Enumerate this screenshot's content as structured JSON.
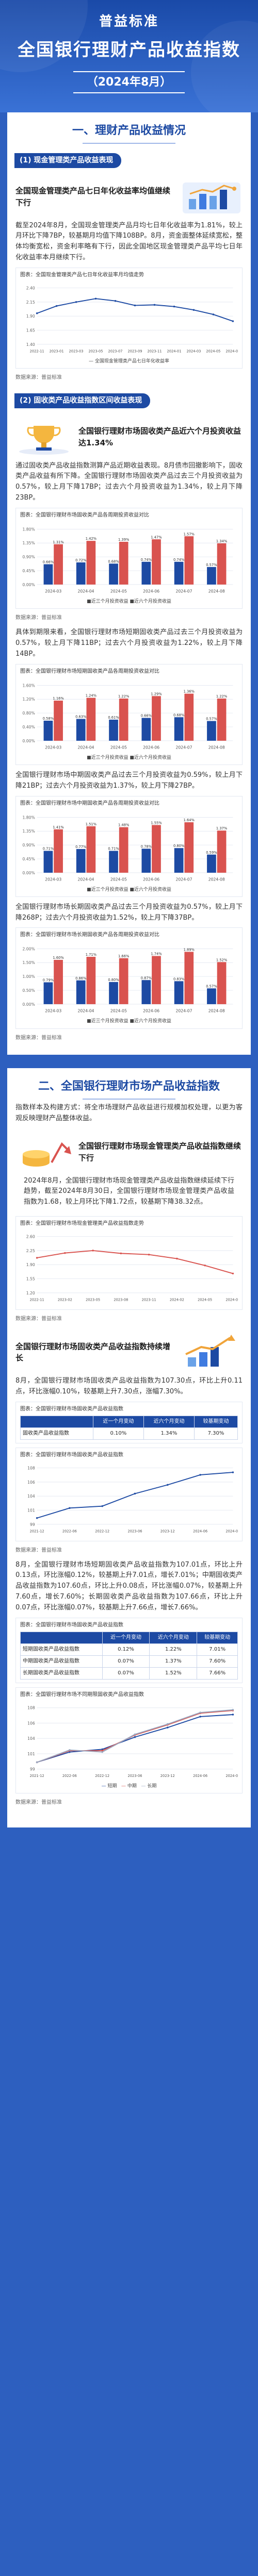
{
  "header": {
    "line1": "普益标准",
    "line2": "全国银行理财产品收益指数",
    "line3": "（2024年8月）"
  },
  "section1": {
    "title": "一、理财产品收益情况",
    "sub1": {
      "label": "(1) 现金管理类产品收益表现",
      "callout": "全国现金管理类产品七日年化收益率均值继续下行",
      "paragraph": "截至2024年8月，全国现金管理类产品月均七日年化收益率为1.81%，较上月环比下降7BP，较基期月均值下降108BP。8月，资金面整体延续宽松，整体均衡宽松，资金利率略有下行，因此全国地区现金管理类产品平均七日年化收益率本月继续下行。",
      "fig_title": "图表：全国现金管理类产品七日年化收益率月均值走势",
      "source": "数据来源：普益标准",
      "chart_data": {
        "type": "line",
        "x": [
          "2022-11",
          "2023-01",
          "2023-03",
          "2023-05",
          "2023-07",
          "2023-09",
          "2023-11",
          "2024-01",
          "2024-03",
          "2024-05",
          "2024-08"
        ],
        "series": [
          {
            "name": "全国现金管理类产品七日年化收益率",
            "values": [
              1.95,
              2.08,
              2.15,
              2.21,
              2.17,
              2.09,
              2.1,
              2.07,
              2.01,
              1.93,
              1.81
            ]
          }
        ],
        "ylim": [
          1.4,
          2.4
        ]
      }
    },
    "sub2": {
      "label": "(2) 固收类产品收益指数区间收益表现",
      "callout": "全国银行理财市场固收类产品近六个月投资收益达1.34%",
      "p1": "通过固收类产品收益指数测算产品近期收益表现。8月债市回撤影响下，固收类产品收益有所下降。全国银行理财市场固收类产品过去三个月投资收益为0.57%，较上月下降17BP；过去六个月投资收益为1.34%，较上月下降23BP。",
      "fig1_title": "图表：全国银行理财市场固收类产品各周期投资收益对比",
      "fig1_legend": "■近三个月投资收益   ■近六个月投资收益",
      "fig1_source": "数据来源：普益标准",
      "chart1": {
        "type": "bar",
        "categories": [
          "2024-03",
          "2024-04",
          "2024-05",
          "2024-06",
          "2024-07",
          "2024-08"
        ],
        "series": [
          {
            "name": "近三个月投资收益",
            "values": [
              0.66,
              0.72,
              0.68,
              0.74,
              0.74,
              0.57
            ]
          },
          {
            "name": "近六个月投资收益",
            "values": [
              1.31,
              1.42,
              1.39,
              1.47,
              1.57,
              1.34
            ]
          }
        ],
        "ylim": [
          0,
          1.8
        ]
      },
      "p2": "具体到期限来看，全国银行理财市场短期固收类产品过去三个月投资收益为0.57%，较上月下降11BP；过去六个月投资收益为1.22%，较上月下降14BP。",
      "fig2_title": "图表：全国银行理财市场短期固收类产品各周期投资收益对比",
      "fig2_legend": "■近三个月投资收益   ■近六个月投资收益",
      "chart2": {
        "type": "bar",
        "categories": [
          "2024-03",
          "2024-04",
          "2024-05",
          "2024-06",
          "2024-07",
          "2024-08"
        ],
        "series": [
          {
            "name": "近三个月投资收益",
            "values": [
              0.58,
              0.63,
              0.61,
              0.66,
              0.68,
              0.57
            ]
          },
          {
            "name": "近六个月投资收益",
            "values": [
              1.16,
              1.24,
              1.22,
              1.29,
              1.36,
              1.22
            ]
          }
        ],
        "ylim": [
          0,
          1.6
        ]
      },
      "p3": "全国银行理财市场中期固收类产品过去三个月投资收益为0.59%，较上月下降21BP；过去六个月投资收益为1.37%，较上月下降27BP。",
      "fig3_title": "图表：全国银行理财市场中期固收类产品各周期投资收益对比",
      "fig3_legend": "■近三个月投资收益   ■近六个月投资收益",
      "chart3": {
        "type": "bar",
        "categories": [
          "2024-03",
          "2024-04",
          "2024-05",
          "2024-06",
          "2024-07",
          "2024-08"
        ],
        "series": [
          {
            "name": "近三个月投资收益",
            "values": [
              0.71,
              0.77,
              0.71,
              0.78,
              0.8,
              0.59
            ]
          },
          {
            "name": "近六个月投资收益",
            "values": [
              1.41,
              1.51,
              1.48,
              1.55,
              1.64,
              1.37
            ]
          }
        ],
        "ylim": [
          0,
          1.8
        ]
      },
      "p4": "全国银行理财市场长期固收类产品过去三个月投资收益为0.57%，较上月下降268P；过去六个月投资收益为1.52%，较上月下降37BP。",
      "fig4_title": "图表：全国银行理财市场长期固收类产品各周期投资收益对比",
      "fig4_legend": "■近三个月投资收益   ■近六个月投资收益",
      "fig4_source": "数据来源：普益标准",
      "chart4": {
        "type": "bar",
        "categories": [
          "2024-03",
          "2024-04",
          "2024-05",
          "2024-06",
          "2024-07",
          "2024-08"
        ],
        "series": [
          {
            "name": "近三个月投资收益",
            "values": [
              0.79,
              0.86,
              0.8,
              0.87,
              0.83,
              0.57
            ]
          },
          {
            "name": "近六个月投资收益",
            "values": [
              1.6,
              1.71,
              1.66,
              1.74,
              1.89,
              1.52
            ]
          }
        ],
        "ylim": [
          0,
          2.0
        ]
      }
    }
  },
  "section2": {
    "title": "二、全国银行理财市场产品收益指数",
    "intro": "指数样本及构建方式：将全市场理财产品收益进行规模加权处理，以更为客观反映理财产品整体收益。",
    "callout1": "全国银行理财市场现金管理类产品收益指数继续下行",
    "p1": "2024年8月，全国银行理财市场现金管理类产品收益指数继续延续下行趋势，截至2024年8月30日，全国银行理财市场现金管理类产品收益指数为1.68，较上月环比下降1.72点，较基期下降38.32点。",
    "fig1_title": "图表：全国银行理财市场现金管理类产品收益指数走势",
    "fig1_source": "数据来源：普益标准",
    "line1": {
      "type": "line",
      "x": [
        "2022-11",
        "2023-02",
        "2023-05",
        "2023-08",
        "2023-11",
        "2024-02",
        "2024-05",
        "2024-08"
      ],
      "series": [
        {
          "name": "现金管理类产品收益指数",
          "values": [
            2.07,
            2.19,
            2.25,
            2.18,
            2.15,
            2.05,
            1.88,
            1.68
          ]
        }
      ],
      "ylim": [
        1.2,
        2.6
      ]
    },
    "callout2": "全国银行理财市场固收类产品收益指数持续增长",
    "p2": "8月，全国银行理财市场固收类产品收益指数为107.30点，环比上升0.11点，环比涨幅0.10%，较基期上升7.30点，涨幅7.30%。",
    "table1_title": "图表：全国银行理财市场固收类产品收益指数",
    "table1_cols": [
      "",
      "近一个月变动",
      "近六个月变动",
      "较基期变动"
    ],
    "table1_rows": [
      [
        "固收类产品收益指数",
        "0.10%",
        "1.34%",
        "7.30%"
      ]
    ],
    "line2_title": "图表：全国银行理财市场固收类产品收益指数",
    "line2": {
      "type": "line",
      "x": [
        "2021-12",
        "2022-06",
        "2022-12",
        "2023-06",
        "2023-12",
        "2024-06",
        "2024-08"
      ],
      "series": [
        {
          "name": "固收类产品收益指数",
          "values": [
            100.0,
            101.6,
            101.9,
            103.9,
            105.3,
            106.9,
            107.3
          ]
        }
      ],
      "ylim": [
        99,
        108
      ]
    },
    "p3": "8月，全国银行理财市场短期固收类产品收益指数为107.01点，环比上升0.13点，环比涨幅0.12%，较基期上升7.01点，增长7.01%；中期固收类产品收益指数为107.60点，环比上升0.08点，环比涨幅0.07%，较基期上升7.60点，增长7.60%；长期固收类产品收益指数为107.66点，环比上升0.07点，环比涨幅0.07%，较基期上升7.66点，增长7.66%。",
    "table2_title": "图表：全国银行理财市场固收类产品收益指数",
    "table2_cols": [
      "",
      "近一个月变动",
      "近六个月变动",
      "较基期变动"
    ],
    "table2_rows": [
      [
        "短期固收类产品收益指数",
        "0.12%",
        "1.22%",
        "7.01%"
      ],
      [
        "中期固收类产品收益指数",
        "0.07%",
        "1.37%",
        "7.60%"
      ],
      [
        "长期固收类产品收益指数",
        "0.07%",
        "1.52%",
        "7.66%"
      ]
    ],
    "line3_title": "图表：全国银行理财市场不同期限固收类产品收益指数",
    "line3": {
      "type": "line",
      "x": [
        "2021-12",
        "2022-06",
        "2022-12",
        "2023-06",
        "2023-12",
        "2024-06",
        "2024-08"
      ],
      "series": [
        {
          "name": "短期",
          "values": [
            100.0,
            101.5,
            101.9,
            103.7,
            105.1,
            106.7,
            107.0
          ]
        },
        {
          "name": "中期",
          "values": [
            100.0,
            101.7,
            101.7,
            104.0,
            105.5,
            107.2,
            107.6
          ]
        },
        {
          "name": "长期",
          "values": [
            100.0,
            101.8,
            101.5,
            104.1,
            105.6,
            107.3,
            107.7
          ]
        }
      ],
      "ylim": [
        99,
        108
      ]
    },
    "source": "数据来源：普益标准",
    "colors": {
      "primary": "#1d4aa3",
      "red": "#d9534f",
      "blue2": "#6aa2e8",
      "gray": "#b8c2d6"
    }
  }
}
